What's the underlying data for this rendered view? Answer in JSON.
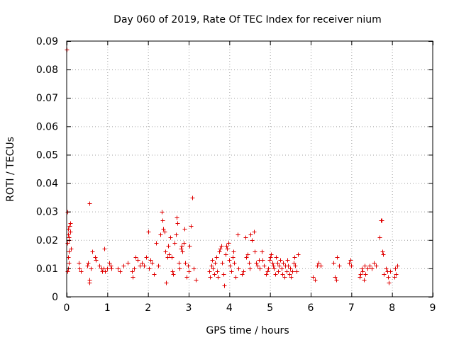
{
  "chart_data": {
    "type": "scatter",
    "title": "Day 060 of 2019, Rate Of TEC Index for receiver nium",
    "xlabel": "GPS time / hours",
    "ylabel": "ROTI / TECUs",
    "xlim": [
      0,
      9
    ],
    "ylim": [
      0,
      0.09
    ],
    "xticks": [
      0,
      1,
      2,
      3,
      4,
      5,
      6,
      7,
      8,
      9
    ],
    "xtick_labels": [
      "0",
      "1",
      "2",
      "3",
      "4",
      "5",
      "6",
      "7",
      "8",
      "9"
    ],
    "yticks": [
      0,
      0.01,
      0.02,
      0.03,
      0.04,
      0.05,
      0.06,
      0.07,
      0.08,
      0.09
    ],
    "ytick_labels": [
      "0",
      "0.01",
      "0.02",
      "0.03",
      "0.04",
      "0.05",
      "0.06",
      "0.07",
      "0.08",
      "0.09"
    ],
    "grid": true,
    "marker": "+",
    "color": "#e00000",
    "series": [
      {
        "name": "ROTI",
        "points": [
          [
            0.0,
            0.087
          ],
          [
            0.01,
            0.03
          ],
          [
            0.02,
            0.019
          ],
          [
            0.03,
            0.022
          ],
          [
            0.04,
            0.024
          ],
          [
            0.05,
            0.016
          ],
          [
            0.06,
            0.012
          ],
          [
            0.02,
            0.009
          ],
          [
            0.03,
            0.01
          ],
          [
            0.04,
            0.014
          ],
          [
            0.07,
            0.025
          ],
          [
            0.09,
            0.026
          ],
          [
            0.1,
            0.017
          ],
          [
            0.05,
            0.021
          ],
          [
            0.06,
            0.02
          ],
          [
            0.08,
            0.023
          ],
          [
            0.3,
            0.012
          ],
          [
            0.32,
            0.01
          ],
          [
            0.35,
            0.009
          ],
          [
            0.5,
            0.011
          ],
          [
            0.52,
            0.012
          ],
          [
            0.55,
            0.033
          ],
          [
            0.55,
            0.006
          ],
          [
            0.56,
            0.005
          ],
          [
            0.6,
            0.01
          ],
          [
            0.62,
            0.016
          ],
          [
            0.7,
            0.014
          ],
          [
            0.72,
            0.013
          ],
          [
            0.8,
            0.011
          ],
          [
            0.85,
            0.01
          ],
          [
            0.88,
            0.009
          ],
          [
            0.9,
            0.01
          ],
          [
            0.92,
            0.017
          ],
          [
            0.95,
            0.009
          ],
          [
            1.0,
            0.01
          ],
          [
            1.05,
            0.012
          ],
          [
            1.08,
            0.011
          ],
          [
            1.1,
            0.01
          ],
          [
            1.25,
            0.01
          ],
          [
            1.3,
            0.009
          ],
          [
            1.4,
            0.011
          ],
          [
            1.5,
            0.012
          ],
          [
            1.6,
            0.009
          ],
          [
            1.62,
            0.007
          ],
          [
            1.65,
            0.01
          ],
          [
            1.7,
            0.014
          ],
          [
            1.75,
            0.013
          ],
          [
            1.8,
            0.011
          ],
          [
            1.85,
            0.012
          ],
          [
            1.9,
            0.011
          ],
          [
            1.95,
            0.014
          ],
          [
            2.0,
            0.023
          ],
          [
            2.02,
            0.01
          ],
          [
            2.05,
            0.013
          ],
          [
            2.1,
            0.012
          ],
          [
            2.15,
            0.008
          ],
          [
            2.2,
            0.019
          ],
          [
            2.25,
            0.011
          ],
          [
            2.3,
            0.022
          ],
          [
            2.33,
            0.03
          ],
          [
            2.35,
            0.027
          ],
          [
            2.38,
            0.024
          ],
          [
            2.4,
            0.023
          ],
          [
            2.42,
            0.016
          ],
          [
            2.45,
            0.005
          ],
          [
            2.47,
            0.014
          ],
          [
            2.5,
            0.018
          ],
          [
            2.52,
            0.015
          ],
          [
            2.55,
            0.021
          ],
          [
            2.58,
            0.014
          ],
          [
            2.6,
            0.009
          ],
          [
            2.62,
            0.008
          ],
          [
            2.65,
            0.019
          ],
          [
            2.68,
            0.022
          ],
          [
            2.7,
            0.028
          ],
          [
            2.72,
            0.026
          ],
          [
            2.75,
            0.012
          ],
          [
            2.78,
            0.01
          ],
          [
            2.8,
            0.017
          ],
          [
            2.82,
            0.018
          ],
          [
            2.85,
            0.016
          ],
          [
            2.88,
            0.019
          ],
          [
            2.9,
            0.024
          ],
          [
            2.92,
            0.012
          ],
          [
            2.95,
            0.007
          ],
          [
            2.98,
            0.011
          ],
          [
            3.0,
            0.009
          ],
          [
            3.02,
            0.018
          ],
          [
            3.05,
            0.025
          ],
          [
            3.08,
            0.035
          ],
          [
            3.12,
            0.01
          ],
          [
            3.18,
            0.006
          ],
          [
            3.5,
            0.009
          ],
          [
            3.52,
            0.007
          ],
          [
            3.55,
            0.011
          ],
          [
            3.58,
            0.013
          ],
          [
            3.6,
            0.01
          ],
          [
            3.62,
            0.008
          ],
          [
            3.65,
            0.012
          ],
          [
            3.68,
            0.014
          ],
          [
            3.7,
            0.009
          ],
          [
            3.72,
            0.007
          ],
          [
            3.75,
            0.016
          ],
          [
            3.77,
            0.017
          ],
          [
            3.8,
            0.018
          ],
          [
            3.82,
            0.012
          ],
          [
            3.85,
            0.008
          ],
          [
            3.87,
            0.004
          ],
          [
            3.9,
            0.015
          ],
          [
            3.92,
            0.018
          ],
          [
            3.95,
            0.017
          ],
          [
            3.97,
            0.019
          ],
          [
            4.0,
            0.013
          ],
          [
            4.02,
            0.011
          ],
          [
            4.05,
            0.009
          ],
          [
            4.08,
            0.014
          ],
          [
            4.1,
            0.016
          ],
          [
            4.12,
            0.012
          ],
          [
            4.15,
            0.007
          ],
          [
            4.2,
            0.022
          ],
          [
            4.22,
            0.01
          ],
          [
            4.3,
            0.008
          ],
          [
            4.35,
            0.009
          ],
          [
            4.4,
            0.021
          ],
          [
            4.42,
            0.014
          ],
          [
            4.45,
            0.015
          ],
          [
            4.48,
            0.012
          ],
          [
            4.5,
            0.01
          ],
          [
            4.52,
            0.022
          ],
          [
            4.55,
            0.02
          ],
          [
            4.6,
            0.023
          ],
          [
            4.62,
            0.016
          ],
          [
            4.65,
            0.012
          ],
          [
            4.7,
            0.011
          ],
          [
            4.72,
            0.013
          ],
          [
            4.75,
            0.01
          ],
          [
            4.8,
            0.016
          ],
          [
            4.82,
            0.013
          ],
          [
            4.85,
            0.011
          ],
          [
            4.9,
            0.008
          ],
          [
            4.93,
            0.009
          ],
          [
            4.95,
            0.01
          ],
          [
            4.98,
            0.013
          ],
          [
            5.0,
            0.014
          ],
          [
            5.02,
            0.015
          ],
          [
            5.05,
            0.012
          ],
          [
            5.08,
            0.011
          ],
          [
            5.1,
            0.01
          ],
          [
            5.12,
            0.008
          ],
          [
            5.15,
            0.014
          ],
          [
            5.18,
            0.012
          ],
          [
            5.2,
            0.009
          ],
          [
            5.22,
            0.011
          ],
          [
            5.25,
            0.013
          ],
          [
            5.28,
            0.01
          ],
          [
            5.3,
            0.008
          ],
          [
            5.32,
            0.012
          ],
          [
            5.35,
            0.007
          ],
          [
            5.38,
            0.011
          ],
          [
            5.4,
            0.009
          ],
          [
            5.42,
            0.013
          ],
          [
            5.45,
            0.011
          ],
          [
            5.48,
            0.008
          ],
          [
            5.5,
            0.01
          ],
          [
            5.52,
            0.007
          ],
          [
            5.55,
            0.009
          ],
          [
            5.58,
            0.012
          ],
          [
            5.6,
            0.014
          ],
          [
            5.62,
            0.011
          ],
          [
            5.65,
            0.009
          ],
          [
            5.68,
            0.015
          ],
          [
            6.05,
            0.007
          ],
          [
            6.1,
            0.006
          ],
          [
            6.15,
            0.011
          ],
          [
            6.2,
            0.012
          ],
          [
            6.25,
            0.011
          ],
          [
            6.55,
            0.012
          ],
          [
            6.6,
            0.007
          ],
          [
            6.62,
            0.006
          ],
          [
            6.65,
            0.014
          ],
          [
            6.7,
            0.011
          ],
          [
            6.95,
            0.012
          ],
          [
            6.98,
            0.013
          ],
          [
            7.0,
            0.011
          ],
          [
            7.2,
            0.007
          ],
          [
            7.22,
            0.008
          ],
          [
            7.25,
            0.01
          ],
          [
            7.28,
            0.009
          ],
          [
            7.3,
            0.006
          ],
          [
            7.32,
            0.011
          ],
          [
            7.35,
            0.008
          ],
          [
            7.4,
            0.01
          ],
          [
            7.45,
            0.011
          ],
          [
            7.5,
            0.01
          ],
          [
            7.55,
            0.012
          ],
          [
            7.6,
            0.011
          ],
          [
            7.7,
            0.021
          ],
          [
            7.72,
            0.027
          ],
          [
            7.74,
            0.027
          ],
          [
            7.76,
            0.016
          ],
          [
            7.78,
            0.015
          ],
          [
            7.8,
            0.008
          ],
          [
            7.85,
            0.01
          ],
          [
            7.88,
            0.009
          ],
          [
            7.9,
            0.007
          ],
          [
            7.92,
            0.005
          ],
          [
            7.95,
            0.009
          ],
          [
            8.05,
            0.007
          ],
          [
            8.08,
            0.01
          ],
          [
            8.1,
            0.008
          ],
          [
            8.12,
            0.011
          ]
        ]
      }
    ]
  }
}
